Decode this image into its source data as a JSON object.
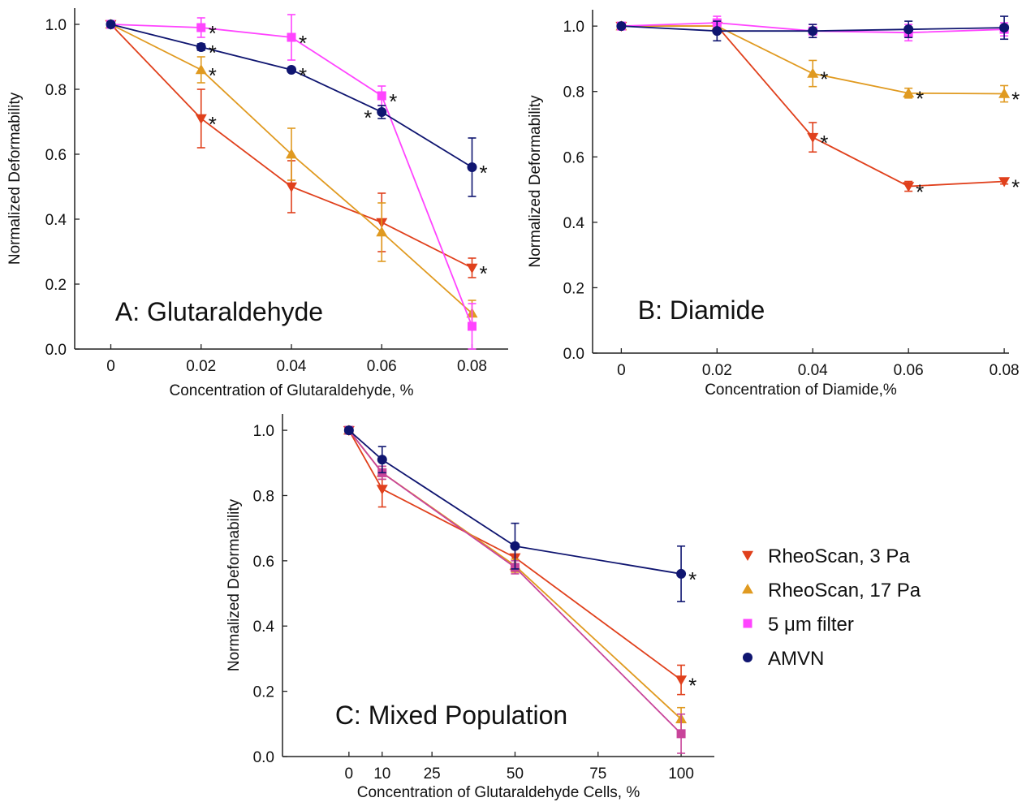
{
  "legend": [
    {
      "name": "RheoScan, 3 Pa",
      "color": "#e0401c",
      "marker": "triangle-down"
    },
    {
      "name": "RheoScan, 17 Pa",
      "color": "#e09a20",
      "marker": "triangle-up"
    },
    {
      "name": "5 μm filter",
      "color": "#ff44ff",
      "marker": "square"
    },
    {
      "name": "AMVN",
      "color": "#0f1570",
      "marker": "circle"
    }
  ],
  "chart_data": [
    {
      "panel": "A",
      "type": "line",
      "title": "A: Glutaraldehyde",
      "xlabel": "Concentration of Glutaraldehyde, %",
      "ylabel": "Normalized Deformability",
      "x_ticks": [
        "0",
        "0.02",
        "0.04",
        "0.06",
        "0.08"
      ],
      "y_ticks": [
        "0.0",
        "0.2",
        "0.4",
        "0.6",
        "0.8",
        "1.0"
      ],
      "xlim": [
        -0.008,
        0.088
      ],
      "ylim": [
        0,
        1.05
      ],
      "series": [
        {
          "name": "RheoScan, 3 Pa",
          "color": "#e0401c",
          "marker": "triangle-down",
          "points": [
            {
              "x": 0,
              "y": 1.0,
              "err": 0.005,
              "star": false
            },
            {
              "x": 0.02,
              "y": 0.71,
              "err": 0.09,
              "star": true
            },
            {
              "x": 0.04,
              "y": 0.5,
              "err": 0.08,
              "star": false
            },
            {
              "x": 0.06,
              "y": 0.39,
              "err": 0.09,
              "star": false
            },
            {
              "x": 0.08,
              "y": 0.25,
              "err": 0.03,
              "star": true
            }
          ]
        },
        {
          "name": "RheoScan, 17 Pa",
          "color": "#e09a20",
          "marker": "triangle-up",
          "points": [
            {
              "x": 0,
              "y": 1.0,
              "err": 0.005,
              "star": false
            },
            {
              "x": 0.02,
              "y": 0.86,
              "err": 0.04,
              "star": true
            },
            {
              "x": 0.04,
              "y": 0.6,
              "err": 0.08,
              "star": false
            },
            {
              "x": 0.06,
              "y": 0.36,
              "err": 0.09,
              "star": false
            },
            {
              "x": 0.08,
              "y": 0.11,
              "err": 0.04,
              "star": false
            }
          ]
        },
        {
          "name": "5 μm filter",
          "color": "#ff44ff",
          "marker": "square",
          "points": [
            {
              "x": 0,
              "y": 1.0,
              "err": 0.005,
              "star": false
            },
            {
              "x": 0.02,
              "y": 0.99,
              "err": 0.03,
              "star": true
            },
            {
              "x": 0.04,
              "y": 0.96,
              "err": 0.07,
              "star": true
            },
            {
              "x": 0.06,
              "y": 0.78,
              "err": 0.03,
              "star": true
            },
            {
              "x": 0.08,
              "y": 0.07,
              "err": 0.07,
              "star": false
            }
          ]
        },
        {
          "name": "AMVN",
          "color": "#0f1570",
          "marker": "circle",
          "points": [
            {
              "x": 0,
              "y": 1.0,
              "err": 0.005,
              "star": false
            },
            {
              "x": 0.02,
              "y": 0.93,
              "err": 0.01,
              "star": true
            },
            {
              "x": 0.04,
              "y": 0.86,
              "err": 0.005,
              "star": true
            },
            {
              "x": 0.06,
              "y": 0.73,
              "err": 0.02,
              "star": true,
              "star_side": "left"
            },
            {
              "x": 0.08,
              "y": 0.56,
              "err": 0.09,
              "star": true
            }
          ]
        }
      ]
    },
    {
      "panel": "B",
      "type": "line",
      "title": "B: Diamide",
      "xlabel": "Concentration of Diamide,%",
      "ylabel": "Normalized Deformability",
      "x_ticks": [
        "0",
        "0.02",
        "0.04",
        "0.06",
        "0.08"
      ],
      "y_ticks": [
        "0.0",
        "0.2",
        "0.4",
        "0.6",
        "0.8",
        "1.0"
      ],
      "xlim": [
        -0.006,
        0.081
      ],
      "ylim": [
        0,
        1.05
      ],
      "series": [
        {
          "name": "RheoScan, 3 Pa",
          "color": "#e0401c",
          "marker": "triangle-down",
          "points": [
            {
              "x": 0,
              "y": 1.0,
              "err": 0.005,
              "star": false
            },
            {
              "x": 0.02,
              "y": 1.0,
              "err": 0.02,
              "star": false
            },
            {
              "x": 0.04,
              "y": 0.66,
              "err": 0.045,
              "star": true
            },
            {
              "x": 0.06,
              "y": 0.51,
              "err": 0.015,
              "star": true
            },
            {
              "x": 0.08,
              "y": 0.525,
              "err": 0.008,
              "star": true
            }
          ]
        },
        {
          "name": "RheoScan, 17 Pa",
          "color": "#e09a20",
          "marker": "triangle-up",
          "points": [
            {
              "x": 0,
              "y": 1.0,
              "err": 0.005,
              "star": false
            },
            {
              "x": 0.02,
              "y": 1.0,
              "err": 0.02,
              "star": false
            },
            {
              "x": 0.04,
              "y": 0.855,
              "err": 0.04,
              "star": true
            },
            {
              "x": 0.06,
              "y": 0.795,
              "err": 0.015,
              "star": true
            },
            {
              "x": 0.08,
              "y": 0.793,
              "err": 0.025,
              "star": true
            }
          ]
        },
        {
          "name": "5 μm filter",
          "color": "#ff44ff",
          "marker": "square",
          "points": [
            {
              "x": 0,
              "y": 1.0,
              "err": 0.005,
              "star": false
            },
            {
              "x": 0.02,
              "y": 1.01,
              "err": 0.02,
              "star": false
            },
            {
              "x": 0.04,
              "y": 0.985,
              "err": 0.02,
              "star": false
            },
            {
              "x": 0.06,
              "y": 0.98,
              "err": 0.025,
              "star": false
            },
            {
              "x": 0.08,
              "y": 0.99,
              "err": 0.02,
              "star": false
            }
          ]
        },
        {
          "name": "AMVN",
          "color": "#0f1570",
          "marker": "circle",
          "points": [
            {
              "x": 0,
              "y": 1.0,
              "err": 0.005,
              "star": false
            },
            {
              "x": 0.02,
              "y": 0.985,
              "err": 0.03,
              "star": false
            },
            {
              "x": 0.04,
              "y": 0.985,
              "err": 0.02,
              "star": false
            },
            {
              "x": 0.06,
              "y": 0.99,
              "err": 0.025,
              "star": false
            },
            {
              "x": 0.08,
              "y": 0.995,
              "err": 0.035,
              "star": false
            }
          ]
        }
      ]
    },
    {
      "panel": "C",
      "type": "line",
      "title": "C: Mixed Population",
      "xlabel": "Concentration of Glutaraldehyde Cells, %",
      "ylabel": "Normalized Deformability",
      "x_ticks": [
        "0",
        "10",
        "25",
        "50",
        "75",
        "100"
      ],
      "y_ticks": [
        "0.0",
        "0.2",
        "0.4",
        "0.6",
        "0.8",
        "1.0"
      ],
      "xlim": [
        -20,
        110
      ],
      "ylim": [
        0,
        1.05
      ],
      "series": [
        {
          "name": "RheoScan, 3 Pa",
          "color": "#e0401c",
          "marker": "triangle-down",
          "points": [
            {
              "x": 0,
              "y": 1.0,
              "err": 0.005,
              "star": false
            },
            {
              "x": 10,
              "y": 0.82,
              "err": 0.055,
              "star": false
            },
            {
              "x": 50,
              "y": 0.61,
              "err": 0.04,
              "star": false
            },
            {
              "x": 100,
              "y": 0.235,
              "err": 0.045,
              "star": true
            }
          ]
        },
        {
          "name": "RheoScan, 17 Pa",
          "color": "#e09a20",
          "marker": "triangle-up",
          "points": [
            {
              "x": 0,
              "y": 1.0,
              "err": 0.005,
              "star": false
            },
            {
              "x": 10,
              "y": 0.87,
              "err": 0.02,
              "star": false
            },
            {
              "x": 50,
              "y": 0.585,
              "err": 0.02,
              "star": false
            },
            {
              "x": 100,
              "y": 0.115,
              "err": 0.035,
              "star": false
            }
          ]
        },
        {
          "name": "5 μm filter",
          "color": "#c8449a",
          "marker": "square",
          "points": [
            {
              "x": 0,
              "y": 1.0,
              "err": 0.005,
              "star": false
            },
            {
              "x": 10,
              "y": 0.87,
              "err": 0.02,
              "star": false
            },
            {
              "x": 50,
              "y": 0.58,
              "err": 0.02,
              "star": false
            },
            {
              "x": 100,
              "y": 0.07,
              "err": 0.06,
              "star": false
            }
          ]
        },
        {
          "name": "AMVN",
          "color": "#0f1570",
          "marker": "circle",
          "points": [
            {
              "x": 0,
              "y": 1.0,
              "err": 0.005,
              "star": false
            },
            {
              "x": 10,
              "y": 0.91,
              "err": 0.04,
              "star": false
            },
            {
              "x": 50,
              "y": 0.645,
              "err": 0.07,
              "star": false
            },
            {
              "x": 100,
              "y": 0.56,
              "err": 0.085,
              "star": true
            }
          ]
        }
      ]
    }
  ]
}
